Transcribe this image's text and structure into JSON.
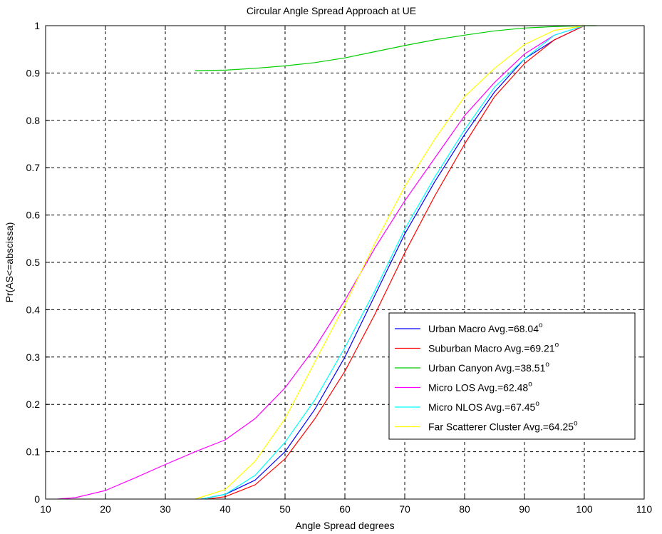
{
  "chart_data": {
    "type": "line",
    "title": "Circular Angle Spread Approach at UE",
    "xlabel": "Angle Spread degrees",
    "ylabel": "Pr(AS<=abscissa)",
    "xlim": [
      10,
      110
    ],
    "ylim": [
      0,
      1
    ],
    "xticks": [
      10,
      20,
      30,
      40,
      50,
      60,
      70,
      80,
      90,
      100,
      110
    ],
    "yticks": [
      0,
      0.1,
      0.2,
      0.3,
      0.4,
      0.5,
      0.6,
      0.7,
      0.8,
      0.9,
      1
    ],
    "grid": true,
    "legend_position": "lower-right",
    "series": [
      {
        "name": "Urban Macro Avg.=68.04",
        "color": "#0000ff",
        "x": [
          36,
          40,
          45,
          50,
          55,
          60,
          65,
          70,
          75,
          80,
          85,
          90,
          95,
          100
        ],
        "y": [
          0,
          0.01,
          0.04,
          0.1,
          0.19,
          0.3,
          0.43,
          0.56,
          0.67,
          0.77,
          0.86,
          0.93,
          0.97,
          1
        ]
      },
      {
        "name": "Suburban Macro Avg.=69.21",
        "color": "#ff0000",
        "x": [
          37,
          40,
          45,
          50,
          55,
          60,
          65,
          70,
          75,
          80,
          85,
          90,
          95,
          100
        ],
        "y": [
          0,
          0.005,
          0.03,
          0.085,
          0.17,
          0.27,
          0.39,
          0.52,
          0.64,
          0.75,
          0.85,
          0.92,
          0.97,
          1
        ]
      },
      {
        "name": "Urban Canyon Avg.=38.51",
        "color": "#00cc00",
        "x": [
          35,
          40,
          45,
          50,
          55,
          60,
          65,
          70,
          75,
          80,
          85,
          90,
          95,
          100,
          102
        ],
        "y": [
          0.905,
          0.906,
          0.91,
          0.915,
          0.922,
          0.932,
          0.945,
          0.958,
          0.97,
          0.98,
          0.989,
          0.995,
          0.998,
          1,
          1
        ]
      },
      {
        "name": "Micro LOS Avg.=62.48",
        "color": "#ff00ff",
        "x": [
          12,
          15,
          20,
          25,
          30,
          35,
          40,
          45,
          50,
          55,
          60,
          65,
          70,
          75,
          80,
          85,
          90,
          95,
          100
        ],
        "y": [
          0,
          0.003,
          0.018,
          0.045,
          0.073,
          0.1,
          0.125,
          0.17,
          0.235,
          0.32,
          0.42,
          0.53,
          0.63,
          0.72,
          0.81,
          0.88,
          0.94,
          0.98,
          1
        ]
      },
      {
        "name": "Micro NLOS Avg.=67.45",
        "color": "#00ffff",
        "x": [
          36,
          40,
          45,
          50,
          55,
          60,
          65,
          70,
          75,
          80,
          85,
          90,
          95,
          100
        ],
        "y": [
          0,
          0.01,
          0.05,
          0.12,
          0.21,
          0.32,
          0.44,
          0.57,
          0.68,
          0.78,
          0.87,
          0.93,
          0.98,
          1
        ]
      },
      {
        "name": "Far Scatterer Cluster Avg.=64.25",
        "color": "#ffff00",
        "x": [
          35,
          40,
          45,
          50,
          55,
          60,
          65,
          70,
          75,
          80,
          85,
          90,
          95,
          100
        ],
        "y": [
          0,
          0.02,
          0.08,
          0.17,
          0.29,
          0.41,
          0.54,
          0.66,
          0.76,
          0.85,
          0.91,
          0.96,
          0.99,
          1
        ]
      }
    ],
    "legend_entries": [
      {
        "label": "Urban Macro Avg.=68.04",
        "sup": "o",
        "color": "#0000ff"
      },
      {
        "label": "Suburban Macro Avg.=69.21",
        "sup": "o",
        "color": "#ff0000"
      },
      {
        "label": "Urban Canyon Avg.=38.51",
        "sup": "o",
        "color": "#00cc00"
      },
      {
        "label": "Micro LOS Avg.=62.48",
        "sup": "o",
        "color": "#ff00ff"
      },
      {
        "label": "Micro NLOS Avg.=67.45",
        "sup": "o",
        "color": "#00ffff"
      },
      {
        "label": "Far Scatterer Cluster Avg.=64.25",
        "sup": "o",
        "color": "#ffff00"
      }
    ]
  }
}
